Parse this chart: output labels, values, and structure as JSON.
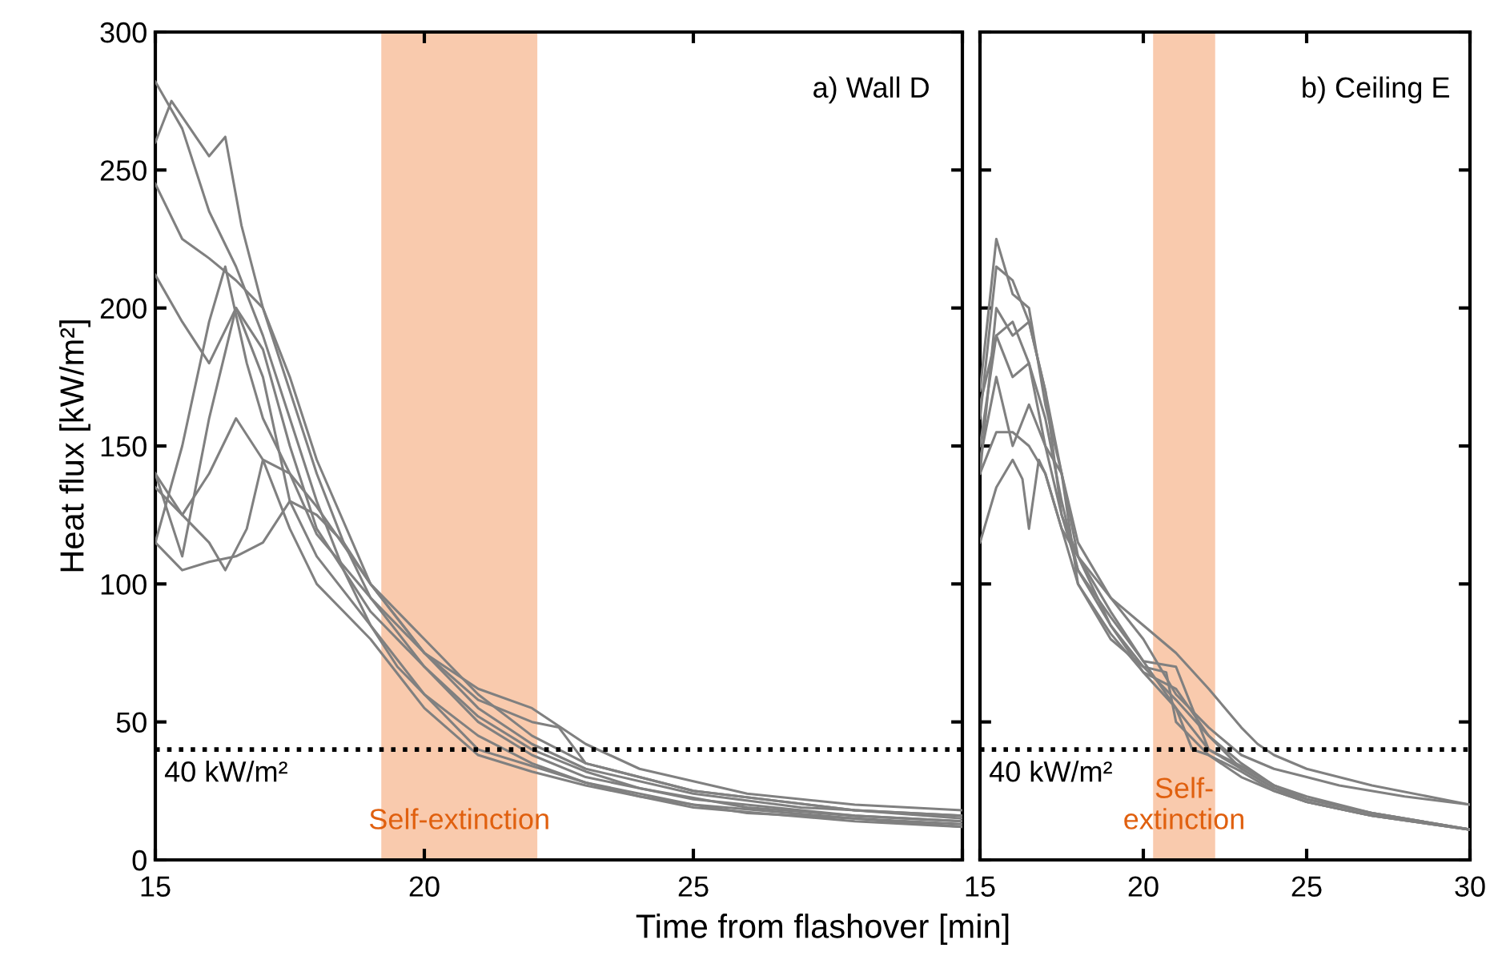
{
  "chart_data": [
    {
      "type": "line",
      "ylabel": "Heat flux [kW/m²]",
      "xlabel": "Time from flashover [min]",
      "annotations": [
        "a) Wall D"
      ],
      "xlim": [
        15,
        30
      ],
      "xticks": [
        15,
        20,
        25,
        {
          "value": 30,
          "label": null
        }
      ],
      "ylim": [
        0,
        300
      ],
      "yticks": [
        0,
        50,
        100,
        150,
        200,
        250,
        300
      ],
      "grid": false,
      "legend": false,
      "line_style": "solid",
      "ref_lines": [
        {
          "axis": "y",
          "value": 40,
          "label": "40 kW/m²",
          "color": "#000000",
          "line_style": "dotted"
        }
      ],
      "bands": [
        {
          "axis": "x",
          "from": 19.2,
          "to": 22.1,
          "label": "Self-extinction",
          "color": "#f6b48a"
        }
      ],
      "series": [
        {
          "color": "#808080",
          "x": [
            15,
            15.5,
            16,
            16.5,
            17,
            17.5,
            18,
            18.5,
            19,
            19.5,
            20,
            21,
            22,
            23,
            24,
            25,
            26,
            28,
            30
          ],
          "values": [
            282,
            265,
            235,
            215,
            190,
            160,
            130,
            105,
            85,
            70,
            60,
            45,
            35,
            28,
            23,
            20,
            17,
            15,
            13
          ]
        },
        {
          "color": "#808080",
          "x": [
            15,
            15.3,
            16,
            16.3,
            16.6,
            17,
            17.5,
            18,
            18.5,
            19,
            20,
            21,
            22,
            23,
            24,
            26,
            28,
            30
          ],
          "values": [
            260,
            275,
            255,
            262,
            230,
            200,
            170,
            140,
            115,
            95,
            70,
            52,
            40,
            32,
            26,
            19,
            16,
            14
          ]
        },
        {
          "color": "#808080",
          "x": [
            15,
            15.5,
            16,
            16.5,
            17,
            17.5,
            18,
            19,
            20,
            21,
            22,
            23,
            25,
            27,
            30
          ],
          "values": [
            245,
            225,
            218,
            210,
            200,
            175,
            145,
            100,
            75,
            55,
            42,
            33,
            24,
            19,
            16
          ]
        },
        {
          "color": "#808080",
          "x": [
            15,
            15.5,
            16,
            16.5,
            17,
            17.5,
            18,
            19,
            20,
            21,
            22,
            23,
            25,
            28,
            30
          ],
          "values": [
            212,
            195,
            180,
            200,
            185,
            150,
            120,
            90,
            70,
            50,
            38,
            30,
            22,
            16,
            14
          ]
        },
        {
          "color": "#808080",
          "x": [
            15,
            15.5,
            16,
            16.3,
            16.7,
            17,
            17.5,
            18,
            19,
            20,
            21,
            22,
            23,
            24,
            26,
            28,
            30
          ],
          "values": [
            115,
            150,
            195,
            215,
            180,
            160,
            140,
            118,
            95,
            75,
            62,
            55,
            42,
            33,
            24,
            20,
            18
          ]
        },
        {
          "color": "#808080",
          "x": [
            15,
            15.5,
            16,
            16.5,
            17,
            17.5,
            18,
            18.5,
            19,
            20,
            21,
            22,
            23,
            25,
            28,
            30
          ],
          "values": [
            140,
            110,
            160,
            200,
            175,
            130,
            125,
            115,
            100,
            80,
            60,
            45,
            35,
            25,
            18,
            15
          ]
        },
        {
          "color": "#808080",
          "x": [
            15,
            15.5,
            16,
            16.5,
            17,
            17.5,
            18,
            19,
            20,
            21,
            22,
            22.5,
            23,
            25,
            28,
            30
          ],
          "values": [
            135,
            125,
            140,
            160,
            145,
            140,
            128,
            100,
            75,
            58,
            50,
            48,
            35,
            25,
            18,
            16
          ]
        },
        {
          "color": "#808080",
          "x": [
            15,
            15.5,
            16,
            16.5,
            17,
            17.5,
            18,
            19,
            20,
            21,
            22,
            23,
            25,
            28,
            30
          ],
          "values": [
            115,
            105,
            108,
            110,
            115,
            130,
            110,
            85,
            60,
            40,
            34,
            28,
            20,
            15,
            12
          ]
        },
        {
          "color": "#808080",
          "x": [
            15,
            15.5,
            16,
            16.3,
            16.7,
            17,
            17.5,
            18,
            19,
            20,
            21,
            22,
            23,
            25,
            28,
            30
          ],
          "values": [
            140,
            125,
            115,
            105,
            120,
            145,
            120,
            100,
            80,
            55,
            38,
            32,
            27,
            19,
            14,
            12
          ]
        }
      ]
    },
    {
      "type": "line",
      "annotations": [
        "b) Ceiling E"
      ],
      "tick_labels": "x",
      "xlim": [
        15,
        30
      ],
      "xticks": [
        15,
        20,
        25,
        30
      ],
      "ylim": [
        0,
        300
      ],
      "yticks": [
        0,
        50,
        100,
        150,
        200,
        250,
        300
      ],
      "grid": false,
      "legend": false,
      "line_style": "solid",
      "ref_lines": [
        {
          "axis": "y",
          "value": 40,
          "label": "40 kW/m²",
          "color": "#000000",
          "line_style": "dotted"
        }
      ],
      "bands": [
        {
          "axis": "x",
          "from": 20.3,
          "to": 22.2,
          "label": "Self-\nextinction",
          "color": "#f6b48a"
        }
      ],
      "series": [
        {
          "color": "#808080",
          "x": [
            15,
            15.5,
            16,
            16.5,
            17,
            17.5,
            18,
            19,
            20,
            21,
            22,
            23,
            24,
            25,
            26,
            28,
            30
          ],
          "values": [
            160,
            215,
            210,
            195,
            170,
            140,
            115,
            95,
            80,
            60,
            48,
            38,
            33,
            30,
            27,
            23,
            20
          ]
        },
        {
          "color": "#808080",
          "x": [
            15,
            15.5,
            16,
            16.5,
            17,
            17.5,
            18,
            19,
            20,
            21,
            22,
            23,
            24,
            25,
            27,
            30
          ],
          "values": [
            170,
            225,
            205,
            200,
            165,
            140,
            110,
            85,
            70,
            58,
            45,
            35,
            27,
            23,
            17,
            11
          ]
        },
        {
          "color": "#808080",
          "x": [
            15,
            15.5,
            16,
            16.5,
            17,
            17.5,
            18,
            19,
            20,
            21,
            22,
            23,
            24,
            25,
            27,
            30
          ],
          "values": [
            140,
            200,
            190,
            195,
            170,
            125,
            110,
            90,
            72,
            55,
            40,
            33,
            26,
            22,
            17,
            11
          ]
        },
        {
          "color": "#808080",
          "x": [
            15,
            15.5,
            16,
            16.5,
            17,
            17.5,
            18,
            19,
            20,
            20.7,
            21,
            22,
            23,
            24,
            25,
            27,
            30
          ],
          "values": [
            165,
            190,
            175,
            180,
            150,
            140,
            100,
            80,
            70,
            68,
            50,
            38,
            30,
            25,
            21,
            16,
            11
          ]
        },
        {
          "color": "#808080",
          "x": [
            15,
            15.5,
            16,
            16.5,
            17,
            17.5,
            18,
            19,
            20,
            21,
            21.5,
            22,
            23,
            24,
            25,
            27,
            30
          ],
          "values": [
            145,
            175,
            150,
            165,
            150,
            125,
            105,
            85,
            68,
            55,
            40,
            38,
            32,
            25,
            21,
            16,
            11
          ]
        },
        {
          "color": "#808080",
          "x": [
            15,
            15.5,
            16,
            16.5,
            17,
            17.5,
            18,
            19,
            20,
            21,
            22,
            23,
            24,
            25,
            27,
            30
          ],
          "values": [
            140,
            155,
            155,
            150,
            140,
            120,
            100,
            82,
            68,
            62,
            45,
            33,
            26,
            21,
            16,
            11
          ]
        },
        {
          "color": "#808080",
          "x": [
            15,
            15.5,
            16,
            16.3,
            16.5,
            16.8,
            17,
            17.5,
            18,
            19,
            20,
            21,
            22,
            23,
            23.5,
            24,
            25,
            27,
            30
          ],
          "values": [
            115,
            135,
            145,
            138,
            120,
            145,
            140,
            120,
            110,
            95,
            85,
            75,
            62,
            48,
            42,
            38,
            33,
            27,
            20
          ]
        },
        {
          "color": "#808080",
          "x": [
            15,
            15.5,
            16,
            16.5,
            17,
            17.5,
            18,
            19,
            20,
            21,
            21.5,
            22,
            23,
            24,
            25,
            27,
            30
          ],
          "values": [
            150,
            190,
            195,
            180,
            160,
            130,
            105,
            88,
            72,
            70,
            55,
            40,
            34,
            27,
            22,
            17,
            11
          ]
        }
      ]
    }
  ]
}
